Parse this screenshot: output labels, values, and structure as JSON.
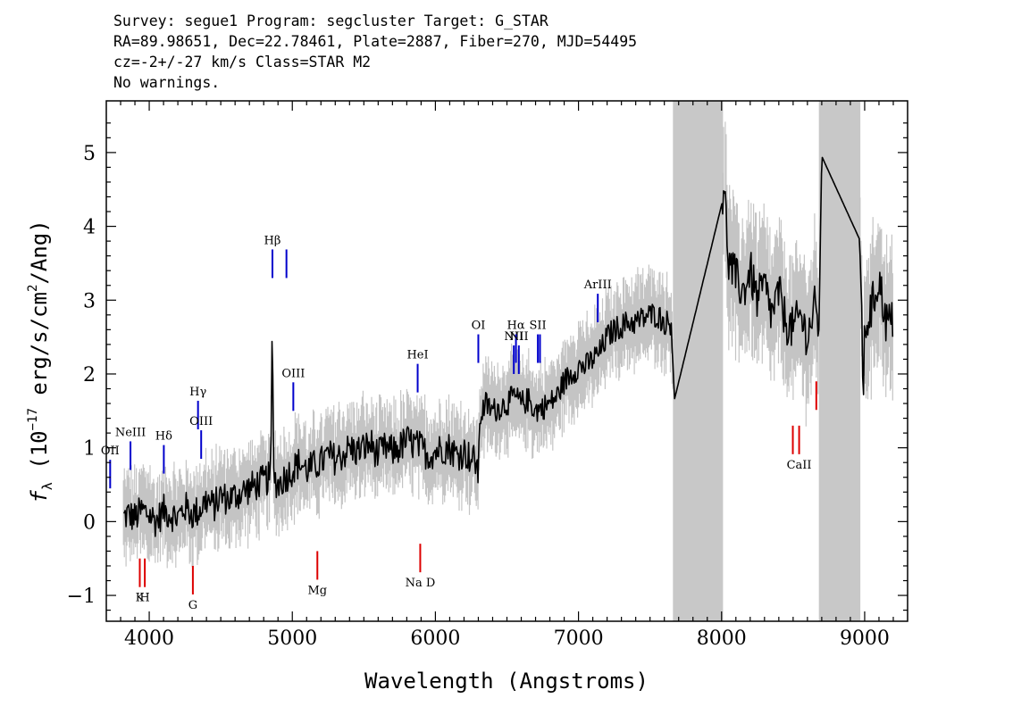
{
  "header": {
    "line1": "Survey: segue1 Program: segcluster Target: G_STAR",
    "line2": "RA=89.98651, Dec=22.78461, Plate=2887, Fiber=270, MJD=54495",
    "line3": "cz=-2+/-27 km/s Class=STAR M2",
    "line4": "No warnings."
  },
  "colors": {
    "spectrum": "#000000",
    "error": "#c4c4c4",
    "masked_band": "#c8c8c8",
    "emission_marker": "#0000cc",
    "absorption_marker": "#dd0000"
  },
  "chart_data": {
    "type": "line",
    "xlabel": "Wavelength (Angstroms)",
    "ylabel": "fλ (10^-17 erg/s/cm^2/Ang)",
    "ylabel_parts": {
      "f": "f",
      "lambda": "λ",
      "pre": " (10",
      "exp1": "−17",
      "mid": " erg/s/cm",
      "exp2": "2",
      "post": "/Ang)"
    },
    "xlim": [
      3700,
      9300
    ],
    "ylim": [
      -1.35,
      5.7
    ],
    "xticks": [
      4000,
      5000,
      6000,
      7000,
      8000,
      9000
    ],
    "xtick_labels": [
      "4000",
      "5000",
      "6000",
      "7000",
      "8000",
      "9000"
    ],
    "yticks": [
      -1,
      0,
      1,
      2,
      3,
      4,
      5
    ],
    "ytick_labels": [
      "−1",
      "0",
      "1",
      "2",
      "3",
      "4",
      "5"
    ],
    "masked_regions": [
      [
        7660,
        8010
      ],
      [
        8680,
        8970
      ]
    ],
    "series": [
      {
        "role": "flux",
        "x": [
          3820,
          3850,
          3900,
          3950,
          4000,
          4050,
          4100,
          4150,
          4200,
          4250,
          4300,
          4350,
          4400,
          4450,
          4500,
          4550,
          4600,
          4650,
          4700,
          4750,
          4800,
          4850,
          4860,
          4870,
          4900,
          4950,
          5000,
          5050,
          5100,
          5150,
          5200,
          5250,
          5300,
          5350,
          5400,
          5450,
          5500,
          5550,
          5600,
          5650,
          5700,
          5750,
          5800,
          5850,
          5900,
          5950,
          6000,
          6050,
          6100,
          6150,
          6200,
          6250,
          6290,
          6300,
          6310,
          6350,
          6400,
          6450,
          6500,
          6550,
          6600,
          6650,
          6700,
          6750,
          6800,
          6850,
          6900,
          6950,
          7000,
          7050,
          7100,
          7150,
          7200,
          7250,
          7300,
          7350,
          7400,
          7450,
          7500,
          7550,
          7600,
          7650,
          7670,
          8020,
          8050,
          8100,
          8150,
          8200,
          8250,
          8300,
          8350,
          8400,
          8450,
          8500,
          8550,
          8600,
          8650,
          8680,
          8700,
          8970,
          8990,
          9000,
          9050,
          9100,
          9150,
          9200
        ],
        "y": [
          0.05,
          0.1,
          0.05,
          0.15,
          0.1,
          0.0,
          0.15,
          0.1,
          0.05,
          0.2,
          0.1,
          0.15,
          0.3,
          0.2,
          0.35,
          0.3,
          0.35,
          0.4,
          0.45,
          0.5,
          0.55,
          0.6,
          2.9,
          0.6,
          0.5,
          0.6,
          0.7,
          0.8,
          0.7,
          0.75,
          0.8,
          0.9,
          0.85,
          0.9,
          1.0,
          0.95,
          1.0,
          1.05,
          0.9,
          1.0,
          0.95,
          1.0,
          1.1,
          1.05,
          1.0,
          0.9,
          0.95,
          1.0,
          1.0,
          0.9,
          0.95,
          0.85,
          0.8,
          0.6,
          1.4,
          1.6,
          1.5,
          1.55,
          1.6,
          1.7,
          1.6,
          1.65,
          1.5,
          1.55,
          1.6,
          1.7,
          1.9,
          2.0,
          2.1,
          2.1,
          2.2,
          2.3,
          2.5,
          2.6,
          2.65,
          2.7,
          2.7,
          2.75,
          2.8,
          2.8,
          2.7,
          2.7,
          1.65,
          4.45,
          3.5,
          3.3,
          3.1,
          3.4,
          3.0,
          3.2,
          2.8,
          3.1,
          2.7,
          2.6,
          2.8,
          2.5,
          2.9,
          2.6,
          4.95,
          3.8,
          1.5,
          2.6,
          2.9,
          3.3,
          2.7,
          2.7
        ]
      }
    ],
    "lines": [
      {
        "label": "OII",
        "wave": 3727,
        "type": "emission",
        "y": 0.45
      },
      {
        "label": "NeIII",
        "wave": 3869,
        "type": "emission",
        "y": 0.7
      },
      {
        "label": "Hδ",
        "wave": 4102,
        "type": "emission",
        "y": 0.65
      },
      {
        "label": "Hγ",
        "wave": 4341,
        "type": "emission",
        "y": 1.25
      },
      {
        "label": "OIII",
        "wave": 4363,
        "type": "emission",
        "y": 0.85
      },
      {
        "label": "Hβ",
        "wave": 4861,
        "type": "emission",
        "y": 3.3
      },
      {
        "label": "",
        "wave": 4959,
        "type": "emission",
        "y": 3.3
      },
      {
        "label": "OIII",
        "wave": 5007,
        "type": "emission",
        "y": 1.5
      },
      {
        "label": "HeI",
        "wave": 5876,
        "type": "emission",
        "y": 1.75
      },
      {
        "label": "OI",
        "wave": 6300,
        "type": "emission",
        "y": 2.15
      },
      {
        "label": "NII",
        "wave": 6548,
        "type": "emission",
        "y": 2.0
      },
      {
        "label": "Hα",
        "wave": 6563,
        "type": "emission",
        "y": 2.15
      },
      {
        "label": "NII",
        "wave": 6583,
        "type": "emission",
        "y": 2.0
      },
      {
        "label": "SII",
        "wave": 6716,
        "type": "emission",
        "y": 2.15
      },
      {
        "label": "",
        "wave": 6731,
        "type": "emission",
        "y": 2.15
      },
      {
        "label": "ArIII",
        "wave": 7135,
        "type": "emission",
        "y": 2.7
      },
      {
        "label": "K",
        "wave": 3934,
        "type": "absorption",
        "y": -0.5
      },
      {
        "label": "H",
        "wave": 3969,
        "type": "absorption",
        "y": -0.5
      },
      {
        "label": "G",
        "wave": 4305,
        "type": "absorption",
        "y": -0.6
      },
      {
        "label": "Mg",
        "wave": 5175,
        "type": "absorption",
        "y": -0.4
      },
      {
        "label": "Na D",
        "wave": 5894,
        "type": "absorption",
        "y": -0.3
      },
      {
        "label": "",
        "wave": 8498,
        "type": "absorption",
        "y": 1.3
      },
      {
        "label": "CaII",
        "wave": 8542,
        "type": "absorption",
        "y": 1.3
      },
      {
        "label": "",
        "wave": 8662,
        "type": "absorption",
        "y": 1.9
      }
    ]
  }
}
